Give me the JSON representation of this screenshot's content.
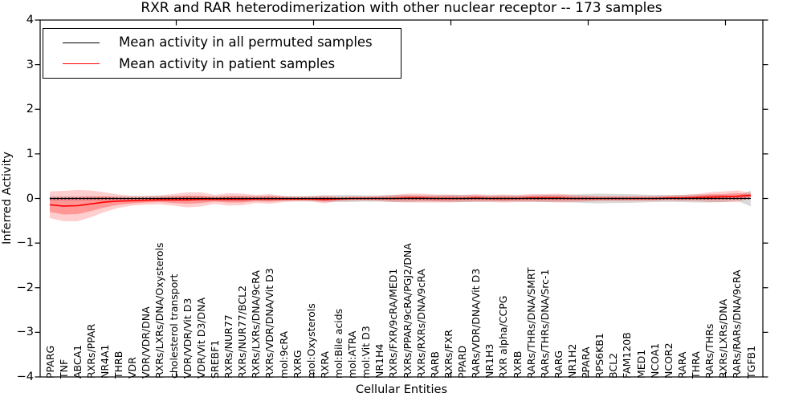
{
  "chart_data": {
    "type": "line",
    "title": "RXR and RAR heterodimerization with other nuclear receptor -- 173 samples",
    "xlabel": "Cellular Entities",
    "ylabel": "Inferred Activity",
    "ylim": [
      -4,
      4
    ],
    "grid": false,
    "legend_position": "upper left",
    "ytick_labels": [
      "4",
      "3",
      "2",
      "1",
      "0",
      "−1",
      "−2",
      "−3",
      "−4"
    ],
    "categories": [
      "PPARG",
      "TNF",
      "ABCA1",
      "RXRs/PPAR",
      "NR4A1",
      "THRB",
      "VDR",
      "VDR/VDR/DNA",
      "RXRs/LXRs/DNA/Oxysterols",
      "cholesterol transport",
      "VDR/VDR/Vit D3",
      "VDR/Vit D3/DNA",
      "SREBF1",
      "RXRs/NUR77",
      "RXRs/NUR77/BCL2",
      "RXRs/LXRs/DNA/9cRA",
      "RXRs/VDR/DNA/Vit D3",
      "mol:9cRA",
      "RXRG",
      "mol:Oxysterols",
      "RXRA",
      "mol:Bile acids",
      "mol:ATRA",
      "mol:Vit D3",
      "NR1H4",
      "RXRs/FXR/9cRA/MED1",
      "RXRs/PPAR/9cRA/PGJ2/DNA",
      "RXRs/RXRs/DNA/9cRA",
      "RARB",
      "RXRs/FXR",
      "PPARD",
      "RARs/VDR/DNA/Vit D3",
      "NR1H3",
      "RXR alpha/CCPG",
      "RXRB",
      "RARs/THRs/DNA/SMRT",
      "RARs/THRs/DNA/Src-1",
      "RARG",
      "NR1H2",
      "PPARA",
      "RPS6KB1",
      "BCL2",
      "FAM120B",
      "MED1",
      "NCOA1",
      "NCOR2",
      "RARA",
      "THRA",
      "RARs/THRs",
      "RXRs/LXRs/DNA",
      "RARs/RARs/DNA/9cRA",
      "TGFB1"
    ],
    "series": [
      {
        "name": "Mean activity in all permuted samples",
        "color": "#000000",
        "style": "solid-with-dashes",
        "values": [
          0,
          0,
          0,
          0,
          0,
          0,
          0,
          0,
          0,
          0,
          0,
          0,
          0,
          0,
          0,
          0,
          0,
          0,
          0,
          0,
          0,
          0,
          0,
          0,
          0,
          0,
          0,
          0,
          0,
          0,
          0,
          0,
          0,
          0,
          0,
          0,
          0,
          0,
          0,
          0,
          0,
          0,
          0,
          0,
          0,
          0,
          0,
          0,
          0,
          0,
          0,
          0
        ]
      },
      {
        "name": "Mean activity in patient samples",
        "color": "#ff0000",
        "style": "solid",
        "values": [
          -0.14,
          -0.17,
          -0.16,
          -0.12,
          -0.08,
          -0.06,
          -0.05,
          -0.04,
          -0.03,
          -0.03,
          -0.03,
          -0.02,
          -0.02,
          -0.02,
          -0.02,
          -0.01,
          -0.01,
          -0.01,
          -0.01,
          -0.01,
          -0.02,
          -0.01,
          0,
          0,
          0,
          0,
          0.01,
          0.01,
          0,
          0,
          0,
          0.01,
          0,
          0,
          0,
          0.01,
          0.01,
          0.01,
          0,
          0,
          0,
          0,
          0,
          0,
          0,
          0.01,
          0.01,
          0.02,
          0.03,
          0.04,
          0.05,
          0.07
        ]
      }
    ],
    "bands": {
      "permuted_color": "#999999",
      "patient_color": "#ff0000",
      "permuted_half_width": [
        0.05,
        0.05,
        0.05,
        0.05,
        0.05,
        0.05,
        0.05,
        0.05,
        0.06,
        0.06,
        0.06,
        0.05,
        0.05,
        0.06,
        0.06,
        0.05,
        0.06,
        0.05,
        0.05,
        0.06,
        0.07,
        0.08,
        0.08,
        0.07,
        0.07,
        0.08,
        0.08,
        0.07,
        0.07,
        0.08,
        0.08,
        0.07,
        0.07,
        0.07,
        0.07,
        0.07,
        0.08,
        0.08,
        0.09,
        0.1,
        0.11,
        0.1,
        0.1,
        0.09,
        0.08,
        0.08,
        0.08,
        0.09,
        0.09,
        0.08,
        0.05,
        0.18
      ],
      "patient_outer_half_width": [
        0.3,
        0.34,
        0.35,
        0.3,
        0.22,
        0.15,
        0.11,
        0.1,
        0.1,
        0.13,
        0.17,
        0.16,
        0.1,
        0.14,
        0.13,
        0.09,
        0.11,
        0.07,
        0.06,
        0.06,
        0.09,
        0.05,
        0.05,
        0.05,
        0.06,
        0.08,
        0.1,
        0.1,
        0.09,
        0.09,
        0.08,
        0.09,
        0.08,
        0.09,
        0.08,
        0.09,
        0.09,
        0.1,
        0.08,
        0.07,
        0.06,
        0.06,
        0.06,
        0.06,
        0.06,
        0.06,
        0.07,
        0.08,
        0.11,
        0.12,
        0.13,
        0.06
      ],
      "patient_inner_half_width": [
        0.16,
        0.19,
        0.19,
        0.16,
        0.12,
        0.08,
        0.06,
        0.05,
        0.05,
        0.07,
        0.09,
        0.08,
        0.05,
        0.07,
        0.07,
        0.05,
        0.06,
        0.04,
        0.03,
        0.03,
        0.05,
        0.03,
        0.03,
        0.03,
        0.03,
        0.04,
        0.05,
        0.05,
        0.05,
        0.05,
        0.04,
        0.05,
        0.04,
        0.05,
        0.04,
        0.05,
        0.05,
        0.05,
        0.04,
        0.04,
        0.03,
        0.03,
        0.03,
        0.03,
        0.03,
        0.03,
        0.04,
        0.04,
        0.06,
        0.06,
        0.07,
        0.03
      ]
    }
  }
}
